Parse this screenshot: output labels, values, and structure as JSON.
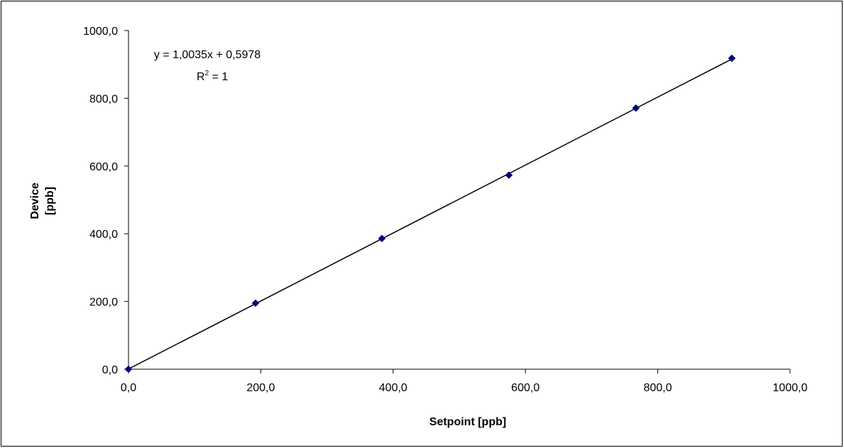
{
  "chart_data": {
    "type": "scatter",
    "title": "",
    "xlabel": "Setpoint [ppb]",
    "ylabel_lines": [
      "Device",
      "[ppb]"
    ],
    "xlim": [
      0,
      1000
    ],
    "ylim": [
      0,
      1000
    ],
    "x_ticks": [
      0,
      200,
      400,
      600,
      800,
      1000
    ],
    "y_ticks": [
      0,
      200,
      400,
      600,
      800,
      1000
    ],
    "x_tick_labels": [
      "0,0",
      "200,0",
      "400,0",
      "600,0",
      "800,0",
      "1000,0"
    ],
    "y_tick_labels": [
      "0,0",
      "200,0",
      "400,0",
      "600,0",
      "800,0",
      "1000,0"
    ],
    "grid": false,
    "legend": false,
    "series": [
      {
        "marker": "diamond",
        "color": "#000080",
        "points": [
          {
            "x": 0,
            "y": 0
          },
          {
            "x": 192,
            "y": 195
          },
          {
            "x": 383,
            "y": 386
          },
          {
            "x": 575,
            "y": 573
          },
          {
            "x": 767,
            "y": 771
          },
          {
            "x": 912,
            "y": 918
          }
        ]
      }
    ],
    "trendline": {
      "type": "linear",
      "slope": 1.0035,
      "intercept": 0.5978,
      "x_range": [
        0,
        912
      ],
      "color": "#000000",
      "equation_text": "y = 1,0035x + 0,5978",
      "r2_base": "R",
      "r2_exp": "2",
      "r2_rest": " = 1"
    }
  }
}
